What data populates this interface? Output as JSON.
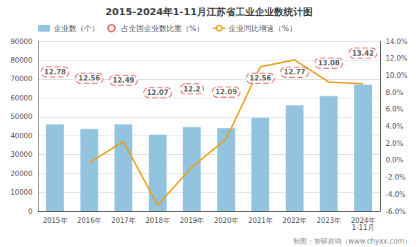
{
  "chart_data": {
    "type": "bar",
    "title": "2015-2024年1-11月江苏省工业企业数统计图",
    "categories": [
      "2015年",
      "2016年",
      "2017年",
      "2018年",
      "2019年",
      "2020年",
      "2021年",
      "2022年",
      "2023年",
      "2024年"
    ],
    "series": [
      {
        "name": "企业数（个）",
        "type": "bar",
        "color": "#92C4E0",
        "values": [
          46000,
          43500,
          46000,
          40500,
          44500,
          44000,
          49500,
          56000,
          61000,
          67000
        ]
      },
      {
        "name": "占全国企业数比重（%）",
        "type": "scatter",
        "marker": "circle",
        "color": "#E83030",
        "values": [
          12.78,
          12.56,
          12.49,
          12.07,
          12.2,
          12.09,
          12.56,
          12.77,
          13.08,
          13.42
        ],
        "value_labels": [
          "12.78",
          "12.56",
          "12.49",
          "12.07",
          "12.2",
          "12.09",
          "12.56",
          "12.77",
          "13.08",
          "13.42"
        ],
        "data_labels": true
      },
      {
        "name": "企业同比增速（%）",
        "type": "line",
        "color": "#E8A020",
        "axis": "y2",
        "values": [
          null,
          -0.3,
          2.2,
          -5.3,
          -0.8,
          2.5,
          11.0,
          11.8,
          9.2,
          9.0
        ]
      }
    ],
    "ylim": [
      0,
      90000
    ],
    "yticks": [
      0,
      10000,
      20000,
      30000,
      40000,
      50000,
      60000,
      70000,
      80000,
      90000
    ],
    "y2lim": [
      -6.0,
      14.0
    ],
    "y2ticks": [
      {
        "value": -6.0,
        "label": "-6.0%"
      },
      {
        "value": -4.0,
        "label": "-4.0%"
      },
      {
        "value": -2.0,
        "label": "-2.0%"
      },
      {
        "value": 0.0,
        "label": "0.0%"
      },
      {
        "value": 2.0,
        "label": "2.0%"
      },
      {
        "value": 4.0,
        "label": "4.0%"
      },
      {
        "value": 6.0,
        "label": "6.0%"
      },
      {
        "value": 8.0,
        "label": "8.0%"
      },
      {
        "value": 10.0,
        "label": "10.0%"
      },
      {
        "value": 12.0,
        "label": "12.0%"
      },
      {
        "value": 14.0,
        "label": "14.0%"
      }
    ],
    "grid": true,
    "legend": "top-left",
    "annotations": [
      {
        "text": "1-11月",
        "category": "2024年"
      },
      {
        "text": "制图：智研咨询（www.chyxx.com）"
      }
    ]
  }
}
